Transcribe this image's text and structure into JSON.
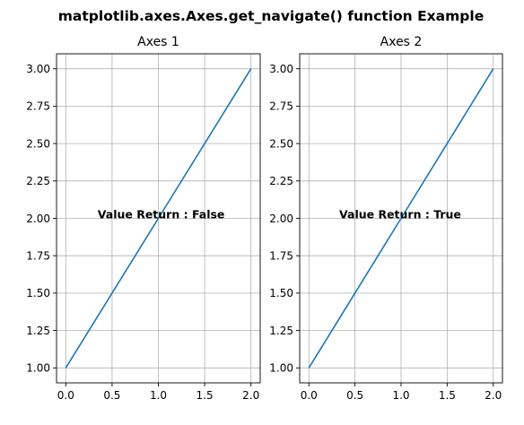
{
  "figure": {
    "suptitle": "matplotlib.axes.Axes.get_navigate() function Example"
  },
  "chart_data": [
    {
      "type": "line",
      "title": "Axes 1",
      "xlabel": "",
      "ylabel": "",
      "x": [
        0,
        1,
        2
      ],
      "series": [
        {
          "values": [
            1,
            2,
            3
          ],
          "color": "#1f77b4"
        }
      ],
      "xlim": [
        -0.1,
        2.1
      ],
      "ylim": [
        0.9,
        3.1
      ],
      "xticks": [
        0.0,
        0.5,
        1.0,
        1.5,
        2.0
      ],
      "xtick_labels": [
        "0.0",
        "0.5",
        "1.0",
        "1.5",
        "2.0"
      ],
      "yticks": [
        1.0,
        1.25,
        1.5,
        1.75,
        2.0,
        2.25,
        2.5,
        2.75,
        3.0
      ],
      "ytick_labels": [
        "1.00",
        "1.25",
        "1.50",
        "1.75",
        "2.00",
        "2.25",
        "2.50",
        "2.75",
        "3.00"
      ],
      "grid": true,
      "annotations": [
        {
          "text": "Value Return : False",
          "x": 1.03,
          "y": 2.0
        }
      ]
    },
    {
      "type": "line",
      "title": "Axes 2",
      "xlabel": "",
      "ylabel": "",
      "x": [
        0,
        1,
        2
      ],
      "series": [
        {
          "values": [
            1,
            2,
            3
          ],
          "color": "#1f77b4"
        }
      ],
      "xlim": [
        -0.1,
        2.1
      ],
      "ylim": [
        0.9,
        3.1
      ],
      "xticks": [
        0.0,
        0.5,
        1.0,
        1.5,
        2.0
      ],
      "xtick_labels": [
        "0.0",
        "0.5",
        "1.0",
        "1.5",
        "2.0"
      ],
      "yticks": [
        1.0,
        1.25,
        1.5,
        1.75,
        2.0,
        2.25,
        2.5,
        2.75,
        3.0
      ],
      "ytick_labels": [
        "1.00",
        "1.25",
        "1.50",
        "1.75",
        "2.00",
        "2.25",
        "2.50",
        "2.75",
        "3.00"
      ],
      "grid": true,
      "annotations": [
        {
          "text": "Value Return : True",
          "x": 0.99,
          "y": 2.0
        }
      ]
    }
  ]
}
